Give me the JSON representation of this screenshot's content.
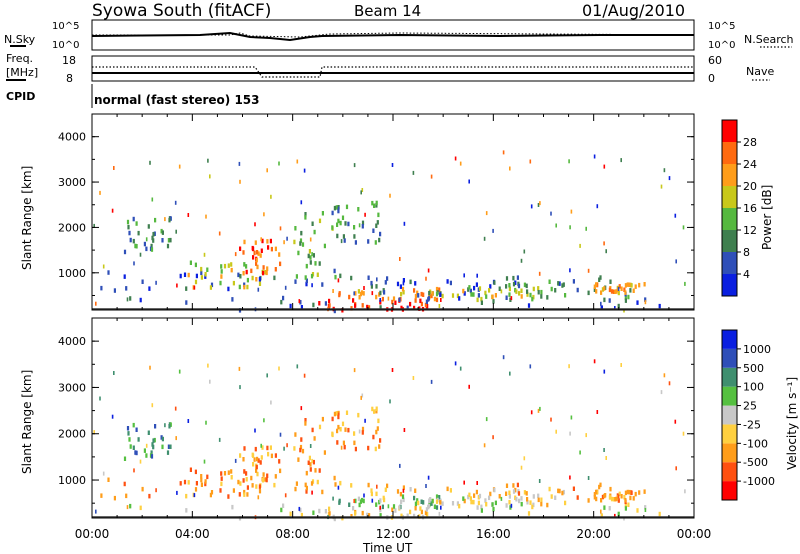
{
  "header": {
    "station": "Syowa South (fitACF)",
    "beam": "Beam 14",
    "date": "01/Aug/2010"
  },
  "top_panels": {
    "nsky_label": "N.Sky",
    "nsearch_label": "N.Search",
    "noise_ticks": [
      "10^5",
      "10^0"
    ],
    "freq_label_1": "Freq.",
    "freq_label_2": "[MHz]",
    "freq_ticks": [
      "18",
      "8"
    ],
    "nave_label": "Nave",
    "nave_ticks": [
      "60",
      "0"
    ],
    "cpid_label": "CPID",
    "cpid_text": "normal (fast stereo) 153"
  },
  "x_axis": {
    "label": "Time UT",
    "ticks": [
      "00:00",
      "04:00",
      "08:00",
      "12:00",
      "16:00",
      "20:00",
      "00:00"
    ]
  },
  "colors": {
    "power": [
      "#0a1fe0",
      "#2f4fb8",
      "#3f7f4f",
      "#55b83f",
      "#c8c81a",
      "#ff9d1a",
      "#ff6a10",
      "#ff0000"
    ],
    "velocity": [
      "#ff0000",
      "#ff5010",
      "#ff9d1a",
      "#ffd040",
      "#c8c8c8",
      "#55c040",
      "#3f8f6f",
      "#2f4fb8",
      "#0a1fe0"
    ]
  },
  "chart_data": [
    {
      "type": "heatmap",
      "title": "Power",
      "ylabel": "Slant Range [km]",
      "xlabel": "",
      "xlim": [
        0,
        24
      ],
      "ylim": [
        180,
        4500
      ],
      "yticks": [
        "1000",
        "2000",
        "3000",
        "4000"
      ],
      "colorbar": {
        "label": "Power [dB]",
        "ticks": [
          "4",
          "8",
          "12",
          "16",
          "20",
          "24",
          "28"
        ],
        "range": [
          0,
          32
        ]
      },
      "patches": [
        {
          "t": [
            1.2,
            3.2
          ],
          "r": [
            1500,
            2300
          ],
          "level": 2
        },
        {
          "t": [
            0.3,
            12.5
          ],
          "r": [
            650,
            1100
          ],
          "level": 1
        },
        {
          "t": [
            3.8,
            7.0
          ],
          "r": [
            700,
            1300
          ],
          "level": 4
        },
        {
          "t": [
            5.8,
            7.5
          ],
          "r": [
            1000,
            1800
          ],
          "level": 6
        },
        {
          "t": [
            8.0,
            9.8
          ],
          "r": [
            900,
            2400
          ],
          "level": 3
        },
        {
          "t": [
            9.0,
            13.5
          ],
          "r": [
            200,
            450
          ],
          "level": 7
        },
        {
          "t": [
            9.8,
            14.0
          ],
          "r": [
            450,
            700
          ],
          "level": 5
        },
        {
          "t": [
            11.0,
            19.5
          ],
          "r": [
            550,
            900
          ],
          "level": 1
        },
        {
          "t": [
            13.5,
            18.0
          ],
          "r": [
            450,
            750
          ],
          "level": 4
        },
        {
          "t": [
            16.0,
            21.5
          ],
          "r": [
            500,
            950
          ],
          "level": 2
        },
        {
          "t": [
            20.0,
            22.0
          ],
          "r": [
            600,
            800
          ],
          "level": 5
        },
        {
          "t": [
            9.5,
            11.5
          ],
          "r": [
            1700,
            2600
          ],
          "level": 2
        },
        {
          "t": [
            0.1,
            23.9
          ],
          "r": [
            200,
            500
          ],
          "level": 1
        }
      ]
    },
    {
      "type": "heatmap",
      "title": "Velocity",
      "ylabel": "Slant Range [km]",
      "xlabel": "Time UT",
      "xlim": [
        0,
        24
      ],
      "ylim": [
        180,
        4500
      ],
      "yticks": [
        "1000",
        "2000",
        "3000",
        "4000"
      ],
      "colorbar": {
        "label": "Velocity [m s⁻¹]",
        "ticks": [
          "-1000",
          "-500",
          "-100",
          "-25",
          "25",
          "100",
          "500",
          "1000"
        ],
        "range": [
          -1200,
          1200
        ]
      },
      "patches": [
        {
          "t": [
            1.2,
            3.2
          ],
          "r": [
            1500,
            2300
          ],
          "level": 6
        },
        {
          "t": [
            0.3,
            12.5
          ],
          "r": [
            650,
            1100
          ],
          "level": 2
        },
        {
          "t": [
            3.8,
            7.0
          ],
          "r": [
            700,
            1300
          ],
          "level": 2
        },
        {
          "t": [
            5.8,
            7.5
          ],
          "r": [
            1000,
            1800
          ],
          "level": 2
        },
        {
          "t": [
            8.0,
            9.8
          ],
          "r": [
            900,
            2400
          ],
          "level": 2
        },
        {
          "t": [
            9.0,
            13.5
          ],
          "r": [
            200,
            450
          ],
          "level": 3
        },
        {
          "t": [
            9.8,
            14.0
          ],
          "r": [
            450,
            700
          ],
          "level": 5
        },
        {
          "t": [
            11.0,
            19.5
          ],
          "r": [
            550,
            900
          ],
          "level": 3
        },
        {
          "t": [
            13.5,
            18.0
          ],
          "r": [
            450,
            750
          ],
          "level": 4
        },
        {
          "t": [
            16.0,
            21.5
          ],
          "r": [
            500,
            950
          ],
          "level": 2
        },
        {
          "t": [
            20.0,
            22.0
          ],
          "r": [
            600,
            800
          ],
          "level": 2
        },
        {
          "t": [
            9.5,
            11.5
          ],
          "r": [
            1700,
            2600
          ],
          "level": 2
        },
        {
          "t": [
            0.1,
            23.9
          ],
          "r": [
            200,
            500
          ],
          "level": 4
        }
      ]
    }
  ]
}
